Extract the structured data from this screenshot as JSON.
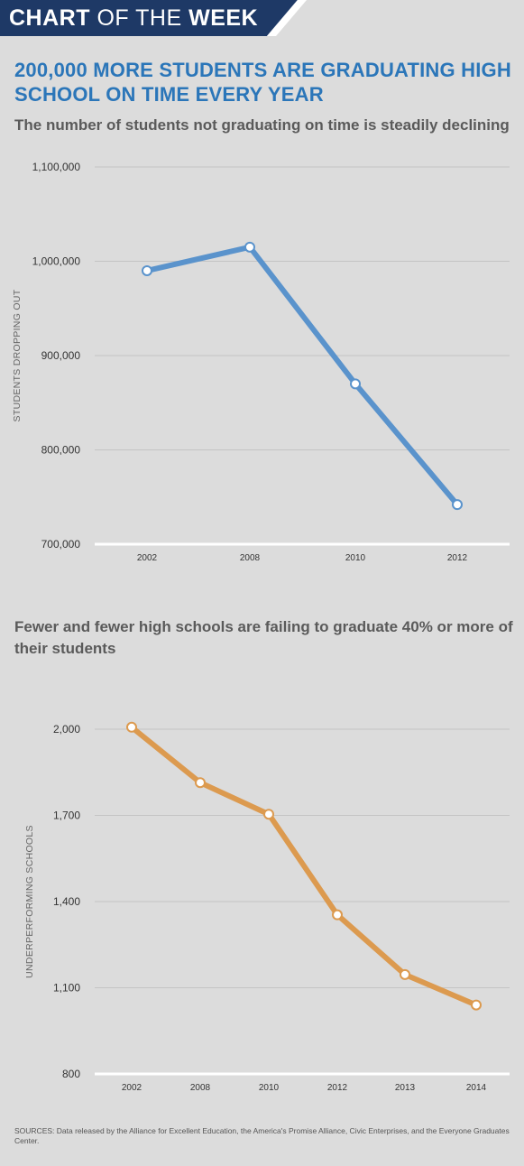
{
  "banner": {
    "word1": "CHART",
    "word2": " OF THE ",
    "word3": "WEEK"
  },
  "headline": "200,000 MORE STUDENTS ARE GRADUATING HIGH SCHOOL ON TIME EVERY YEAR",
  "sources": "SOURCES: Data released by the Alliance for Excellent Education, the America's Promise Alliance, Civic Enterprises, and the Everyone Graduates Center.",
  "colors": {
    "banner": "#1e3966",
    "headline": "#2b76b9",
    "series1": "#5a93cc",
    "series2": "#dc9a4f",
    "grid": "#c4c4c4",
    "baseline": "#ffffff"
  },
  "chart_data": [
    {
      "type": "line",
      "title": "The number of students not graduating on time is steadily declining",
      "xlabel": "",
      "ylabel": "STUDENTS DROPPING OUT",
      "categories": [
        "2002",
        "2008",
        "2010",
        "2012"
      ],
      "values": [
        990000,
        1015000,
        870000,
        742000
      ],
      "ylim": [
        700000,
        1100000
      ],
      "yticks": [
        700000,
        800000,
        900000,
        1000000,
        1100000
      ],
      "ytick_labels": [
        "700,000",
        "800,000",
        "900,000",
        "1,000,000",
        "1,100,000"
      ],
      "grid": true,
      "color": "#5a93cc"
    },
    {
      "type": "line",
      "title": "Fewer and fewer high schools are failing to graduate 40% or more of their students",
      "xlabel": "",
      "ylabel": "UNDERPERFORMING SCHOOLS",
      "categories": [
        "2002",
        "2008",
        "2010",
        "2012",
        "2013",
        "2014"
      ],
      "values": [
        2007,
        1814,
        1704,
        1354,
        1146,
        1040
      ],
      "ylim": [
        800,
        2000
      ],
      "yticks": [
        800,
        1100,
        1400,
        1700,
        2000
      ],
      "ytick_labels": [
        "800",
        "1,100",
        "1,400",
        "1,700",
        "2,000"
      ],
      "grid": true,
      "color": "#dc9a4f"
    }
  ]
}
